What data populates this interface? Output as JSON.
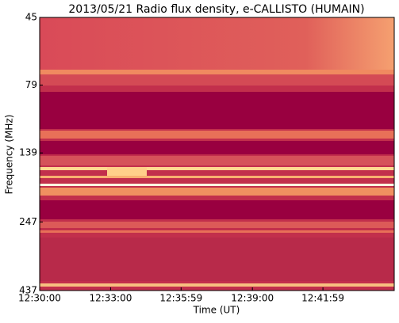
{
  "chart_data": {
    "type": "spectrogram",
    "title": "2013/05/21  Radio flux density, e-CALLISTO (HUMAIN)",
    "x_label": "Time (UT)",
    "y_label": "Frequency (MHz)",
    "xlim": [
      0,
      900
    ],
    "xticks": [
      {
        "value": 0,
        "label": "12:30:00"
      },
      {
        "value": 180,
        "label": "12:33:00"
      },
      {
        "value": 359,
        "label": "12:35:59"
      },
      {
        "value": 540,
        "label": "12:39:00"
      },
      {
        "value": 719,
        "label": "12:41:59"
      }
    ],
    "ylim": [
      437,
      45
    ],
    "yticks": [
      45,
      79,
      139,
      247,
      437
    ],
    "y_log": true
  }
}
